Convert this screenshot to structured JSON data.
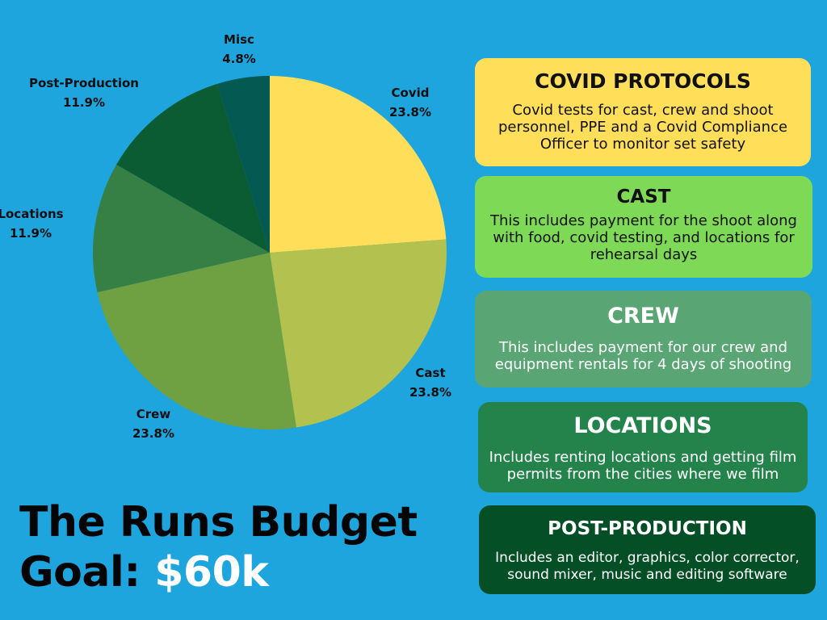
{
  "chart_data": {
    "type": "pie",
    "slices": [
      {
        "label": "Covid",
        "percent_text": "23.8%",
        "value": 23.8,
        "color": "#ffde59"
      },
      {
        "label": "Cast",
        "percent_text": "23.8%",
        "value": 23.8,
        "color": "#b3c24f"
      },
      {
        "label": "Crew",
        "percent_text": "23.8%",
        "value": 23.8,
        "color": "#6fa143"
      },
      {
        "label": "Locations",
        "percent_text": "11.9%",
        "value": 11.9,
        "color": "#367f45"
      },
      {
        "label": "Post-Production",
        "percent_text": "11.9%",
        "value": 11.9,
        "color": "#0b5b33"
      },
      {
        "label": "Misc",
        "percent_text": "4.8%",
        "value": 4.8,
        "color": "#045a52"
      }
    ]
  },
  "title": {
    "line1": "The Runs Budget",
    "line2_prefix": "Goal: ",
    "amount": "$60k"
  },
  "cards": [
    {
      "heading": "COVID PROTOCOLS",
      "body": "Covid tests for cast, crew and shoot personnel, PPE and a Covid Compliance Officer to monitor set safety",
      "bg": "#ffde59",
      "text_color": "#111111"
    },
    {
      "heading": "CAST",
      "body": "This includes payment for the shoot along with food, covid testing, and locations for rehearsal days",
      "bg": "#7ed957",
      "text_color": "#111111"
    },
    {
      "heading": "CREW",
      "body": "This includes payment for our crew and equipment rentals for 4 days of shooting",
      "bg": "#5aa574",
      "text_color": "#ffffff"
    },
    {
      "heading": "LOCATIONS",
      "body": "Includes renting locations and getting film permits from the cities where we film",
      "bg": "#23834a",
      "text_color": "#ffffff"
    },
    {
      "heading": "POST-PRODUCTION",
      "body": "Includes an editor, graphics, color corrector, sound mixer, music and editing software",
      "bg": "#054f26",
      "text_color": "#ffffff"
    }
  ]
}
